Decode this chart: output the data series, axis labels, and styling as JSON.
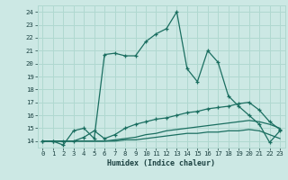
{
  "xlabel": "Humidex (Indice chaleur)",
  "bg_color": "#cce8e4",
  "grid_color": "#b0d8d0",
  "line_color": "#1a6e60",
  "xlim": [
    -0.5,
    23.5
  ],
  "ylim": [
    13.5,
    24.5
  ],
  "xticks": [
    0,
    1,
    2,
    3,
    4,
    5,
    6,
    7,
    8,
    9,
    10,
    11,
    12,
    13,
    14,
    15,
    16,
    17,
    18,
    19,
    20,
    21,
    22,
    23
  ],
  "yticks": [
    14,
    15,
    16,
    17,
    18,
    19,
    20,
    21,
    22,
    23,
    24
  ],
  "curve1_x": [
    0,
    1,
    2,
    3,
    4,
    5,
    6,
    7,
    8,
    9,
    10,
    11,
    12,
    13,
    14,
    15,
    16,
    17,
    18,
    19,
    20,
    21,
    22,
    23
  ],
  "curve1_y": [
    14.0,
    14.0,
    13.7,
    14.8,
    15.0,
    14.2,
    20.7,
    20.8,
    20.6,
    20.6,
    21.7,
    22.3,
    22.7,
    24.0,
    19.6,
    18.6,
    21.0,
    20.1,
    17.5,
    16.7,
    16.0,
    15.3,
    13.9,
    14.8
  ],
  "curve2_x": [
    0,
    1,
    2,
    3,
    4,
    5,
    6,
    7,
    8,
    9,
    10,
    11,
    12,
    13,
    14,
    15,
    16,
    17,
    18,
    19,
    20,
    21,
    22,
    23
  ],
  "curve2_y": [
    14.0,
    14.0,
    14.0,
    14.0,
    14.3,
    14.8,
    14.2,
    14.5,
    15.0,
    15.3,
    15.5,
    15.7,
    15.8,
    16.0,
    16.2,
    16.3,
    16.5,
    16.6,
    16.7,
    16.9,
    17.0,
    16.4,
    15.5,
    14.9
  ],
  "curve3_x": [
    0,
    1,
    2,
    3,
    4,
    5,
    6,
    7,
    8,
    9,
    10,
    11,
    12,
    13,
    14,
    15,
    16,
    17,
    18,
    19,
    20,
    21,
    22,
    23
  ],
  "curve3_y": [
    14.0,
    14.0,
    14.0,
    14.0,
    14.0,
    14.0,
    14.0,
    14.1,
    14.2,
    14.3,
    14.5,
    14.6,
    14.8,
    14.9,
    15.0,
    15.1,
    15.2,
    15.3,
    15.4,
    15.5,
    15.6,
    15.5,
    15.3,
    15.0
  ],
  "curve4_x": [
    0,
    1,
    2,
    3,
    4,
    5,
    6,
    7,
    8,
    9,
    10,
    11,
    12,
    13,
    14,
    15,
    16,
    17,
    18,
    19,
    20,
    21,
    22,
    23
  ],
  "curve4_y": [
    14.0,
    14.0,
    14.0,
    14.0,
    14.0,
    14.0,
    14.0,
    14.0,
    14.1,
    14.1,
    14.2,
    14.3,
    14.4,
    14.5,
    14.6,
    14.6,
    14.7,
    14.7,
    14.8,
    14.8,
    14.9,
    14.8,
    14.5,
    14.2
  ]
}
